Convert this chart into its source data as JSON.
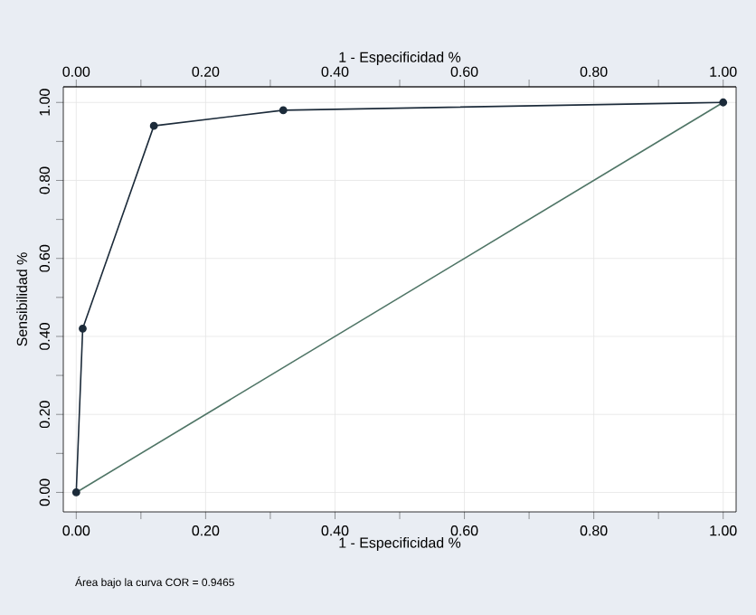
{
  "chart_data": {
    "type": "line",
    "xlabel": "1 - Especificidad %",
    "x2label": "1 - Especificidad %",
    "ylabel": "Sensibilidad %",
    "xlim": [
      -0.02,
      1.02
    ],
    "x2lim": [
      -0.02,
      1.02
    ],
    "ylim": [
      -0.05,
      1.04
    ],
    "xticks": [
      {
        "value": 0,
        "label": "0.00"
      },
      {
        "value": 0.1,
        "label": null
      },
      {
        "value": 0.2,
        "label": "0.20"
      },
      {
        "value": 0.3,
        "label": null
      },
      {
        "value": 0.4,
        "label": "0.40"
      },
      {
        "value": 0.5,
        "label": null
      },
      {
        "value": 0.6,
        "label": "0.60"
      },
      {
        "value": 0.7,
        "label": null
      },
      {
        "value": 0.8,
        "label": "0.80"
      },
      {
        "value": 0.9,
        "label": null
      },
      {
        "value": 1,
        "label": "1.00"
      }
    ],
    "x2ticks": [
      {
        "value": 0,
        "label": "0.00"
      },
      {
        "value": 0.1,
        "label": null
      },
      {
        "value": 0.2,
        "label": "0.20"
      },
      {
        "value": 0.3,
        "label": null
      },
      {
        "value": 0.4,
        "label": "0.40"
      },
      {
        "value": 0.5,
        "label": null
      },
      {
        "value": 0.6,
        "label": "0.60"
      },
      {
        "value": 0.7,
        "label": null
      },
      {
        "value": 0.8,
        "label": "0.80"
      },
      {
        "value": 0.9,
        "label": null
      },
      {
        "value": 1,
        "label": "1.00"
      }
    ],
    "yticks": [
      {
        "value": 0,
        "label": "0.00"
      },
      {
        "value": 0.1,
        "label": null
      },
      {
        "value": 0.2,
        "label": "0.20"
      },
      {
        "value": 0.3,
        "label": null
      },
      {
        "value": 0.4,
        "label": "0.40"
      },
      {
        "value": 0.5,
        "label": null
      },
      {
        "value": 0.6,
        "label": "0.60"
      },
      {
        "value": 0.7,
        "label": null
      },
      {
        "value": 0.8,
        "label": "0.80"
      },
      {
        "value": 0.9,
        "label": null
      },
      {
        "value": 1,
        "label": "1.00"
      }
    ],
    "grid": true,
    "series": [
      {
        "color": "#1c2b3a",
        "marker": "circle",
        "x": [
          0,
          0.01,
          0.12,
          0.32,
          1
        ],
        "values": [
          0,
          0.42,
          0.94,
          0.98,
          1
        ]
      },
      {
        "color": "#4f7566",
        "marker": "none",
        "x": [
          0,
          1
        ],
        "values": [
          0,
          1
        ]
      }
    ],
    "annotations": [
      "Área bajo la curva COR = 0.9465"
    ]
  }
}
